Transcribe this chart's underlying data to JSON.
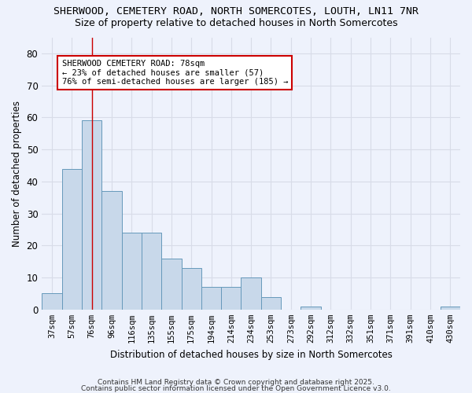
{
  "title1": "SHERWOOD, CEMETERY ROAD, NORTH SOMERCOTES, LOUTH, LN11 7NR",
  "title2": "Size of property relative to detached houses in North Somercotes",
  "xlabel": "Distribution of detached houses by size in North Somercotes",
  "ylabel": "Number of detached properties",
  "categories": [
    "37sqm",
    "57sqm",
    "76sqm",
    "96sqm",
    "116sqm",
    "135sqm",
    "155sqm",
    "175sqm",
    "194sqm",
    "214sqm",
    "234sqm",
    "253sqm",
    "273sqm",
    "292sqm",
    "312sqm",
    "332sqm",
    "351sqm",
    "371sqm",
    "391sqm",
    "410sqm",
    "430sqm"
  ],
  "values": [
    5,
    44,
    59,
    37,
    24,
    24,
    16,
    13,
    7,
    7,
    10,
    4,
    0,
    1,
    0,
    0,
    0,
    0,
    0,
    0,
    1
  ],
  "bar_color": "#c8d8ea",
  "bar_edge_color": "#6699bb",
  "red_line_x": 2,
  "annotation_text": "SHERWOOD CEMETERY ROAD: 78sqm\n← 23% of detached houses are smaller (57)\n76% of semi-detached houses are larger (185) →",
  "annotation_box_color": "white",
  "annotation_box_edge_color": "#cc0000",
  "footer1": "Contains HM Land Registry data © Crown copyright and database right 2025.",
  "footer2": "Contains public sector information licensed under the Open Government Licence v3.0.",
  "ylim": [
    0,
    85
  ],
  "yticks": [
    0,
    10,
    20,
    30,
    40,
    50,
    60,
    70,
    80
  ],
  "bg_color": "#eef2fc",
  "grid_color": "#d8dce8",
  "title_fontsize": 9.5,
  "subtitle_fontsize": 9
}
